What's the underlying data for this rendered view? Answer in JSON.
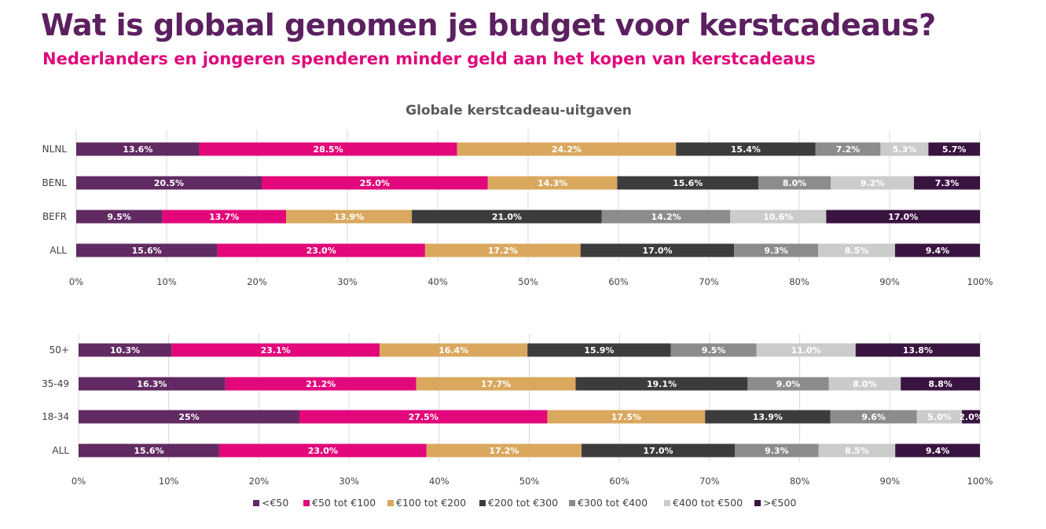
{
  "header": {
    "title": "Wat is globaal genomen je budget voor kerstcadeaus?",
    "subtitle": "Nederlanders en jongeren spenderen minder geld aan het kopen van kerstcadeaus"
  },
  "chart_data": [
    {
      "type": "bar",
      "orientation": "horizontal-stacked-100",
      "title": "Globale kerstcadeau-uitgaven",
      "categories": [
        "NLNL",
        "BENL",
        "BEFR",
        "ALL"
      ],
      "series": [
        {
          "name": "<€50",
          "color": "#612a62",
          "values": [
            13.6,
            20.5,
            9.5,
            15.6
          ],
          "labels": [
            "13.6%",
            "20.5%",
            "9.5%",
            "15.6%"
          ]
        },
        {
          "name": "€50 tot €100",
          "color": "#e2077a",
          "values": [
            28.5,
            25.0,
            13.7,
            23.0
          ],
          "labels": [
            "28.5%",
            "25.0%",
            "13.7%",
            "23.0%"
          ]
        },
        {
          "name": "€100 tot €200",
          "color": "#d9a85e",
          "values": [
            24.2,
            14.3,
            13.9,
            17.2
          ],
          "labels": [
            "24.2%",
            "14.3%",
            "13.9%",
            "17.2%"
          ]
        },
        {
          "name": "€200 tot €300",
          "color": "#3c3c3c",
          "values": [
            15.4,
            15.6,
            21.0,
            17.0
          ],
          "labels": [
            "15.4%",
            "15.6%",
            "21.0%",
            "17.0%"
          ]
        },
        {
          "name": "€300 tot €400",
          "color": "#8c8c8c",
          "values": [
            7.2,
            8.0,
            14.2,
            9.3
          ],
          "labels": [
            "7.2%",
            "8.0%",
            "14.2%",
            "9.3%"
          ]
        },
        {
          "name": "€400 tot €500",
          "color": "#cbcbcb",
          "values": [
            5.3,
            9.2,
            10.6,
            8.5
          ],
          "labels": [
            "5.3%",
            "9.2%",
            "10.6%",
            "8.5%"
          ]
        },
        {
          "name": ">€500",
          "color": "#3a1440",
          "values": [
            5.7,
            7.3,
            17.0,
            9.4
          ],
          "labels": [
            "5.7%",
            "7.3%",
            "17.0%",
            "9.4%"
          ]
        }
      ],
      "xticks": [
        "0%",
        "10%",
        "20%",
        "30%",
        "40%",
        "50%",
        "60%",
        "70%",
        "80%",
        "90%",
        "100%"
      ],
      "xlim": [
        0,
        100
      ],
      "grid": true
    },
    {
      "type": "bar",
      "orientation": "horizontal-stacked-100",
      "categories": [
        "50+",
        "35-49",
        "18-34",
        "ALL"
      ],
      "series": [
        {
          "name": "<€50",
          "color": "#612a62",
          "values": [
            10.3,
            16.3,
            24.5,
            15.6
          ],
          "labels": [
            "10.3%",
            "16.3%",
            "25%",
            "15.6%"
          ]
        },
        {
          "name": "€50 tot €100",
          "color": "#e2077a",
          "values": [
            23.1,
            21.2,
            27.5,
            23.0
          ],
          "labels": [
            "23.1%",
            "21.2%",
            "27.5%",
            "23.0%"
          ]
        },
        {
          "name": "€100 tot €200",
          "color": "#d9a85e",
          "values": [
            16.4,
            17.7,
            17.5,
            17.2
          ],
          "labels": [
            "16.4%",
            "17.7%",
            "17.5%",
            "17.2%"
          ]
        },
        {
          "name": "€200 tot €300",
          "color": "#3c3c3c",
          "values": [
            15.9,
            19.1,
            13.9,
            17.0
          ],
          "labels": [
            "15.9%",
            "19.1%",
            "13.9%",
            "17.0%"
          ]
        },
        {
          "name": "€300 tot €400",
          "color": "#8c8c8c",
          "values": [
            9.5,
            9.0,
            9.6,
            9.3
          ],
          "labels": [
            "9.5%",
            "9.0%",
            "9.6%",
            "9.3%"
          ]
        },
        {
          "name": "€400 tot €500",
          "color": "#cbcbcb",
          "values": [
            11.0,
            8.0,
            5.0,
            8.5
          ],
          "labels": [
            "11.0%",
            "8.0%",
            "5.0%",
            "8.5%"
          ]
        },
        {
          "name": ">€500",
          "color": "#3a1440",
          "values": [
            13.8,
            8.8,
            2.0,
            9.4
          ],
          "labels": [
            "13.8%",
            "8.8%",
            "2.0%",
            "9.4%"
          ]
        }
      ],
      "xticks": [
        "0%",
        "10%",
        "20%",
        "30%",
        "40%",
        "50%",
        "60%",
        "70%",
        "80%",
        "90%",
        "100%"
      ],
      "xlim": [
        0,
        100
      ],
      "grid": true,
      "legend": "bottom"
    }
  ]
}
